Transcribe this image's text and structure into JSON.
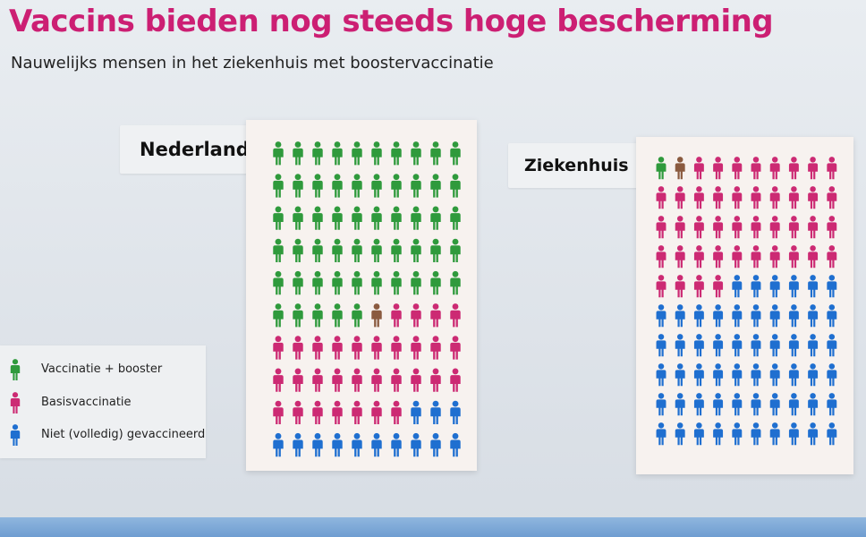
{
  "title": "Vaccins bieden nog steeds hoge bescherming",
  "subtitle": "Nauwelijks mensen in het ziekenhuis met boostervaccinatie",
  "colors": {
    "booster": "#2f9a3c",
    "basis": "#cc2a73",
    "niet": "#1f6fd0",
    "unknown": "#8a5a3f",
    "title": "#cc1f73"
  },
  "legend": [
    {
      "label": "Vaccinatie + booster",
      "color_key": "booster"
    },
    {
      "label": "Basisvaccinatie",
      "color_key": "basis"
    },
    {
      "label": "Niet (volledig) gevaccineerd",
      "color_key": "niet"
    }
  ],
  "chart_data": [
    {
      "type": "pictogram",
      "panel": "Nederland",
      "grid": {
        "rows": 10,
        "cols": 10
      },
      "series": [
        {
          "name": "Vaccinatie + booster",
          "value": 55
        },
        {
          "name": "",
          "value": 1,
          "color_key": "unknown"
        },
        {
          "name": "Basisvaccinatie",
          "value": 31
        },
        {
          "name": "Niet (volledig) gevaccineerd",
          "value": 13
        }
      ]
    },
    {
      "type": "pictogram",
      "panel": "Ziekenhuis",
      "grid": {
        "rows": 10,
        "cols": 10
      },
      "series": [
        {
          "name": "Vaccinatie + booster",
          "value": 1
        },
        {
          "name": "",
          "value": 1,
          "color_key": "unknown"
        },
        {
          "name": "Basisvaccinatie",
          "value": 42
        },
        {
          "name": "Niet (volledig) gevaccineerd",
          "value": 56
        }
      ]
    }
  ]
}
